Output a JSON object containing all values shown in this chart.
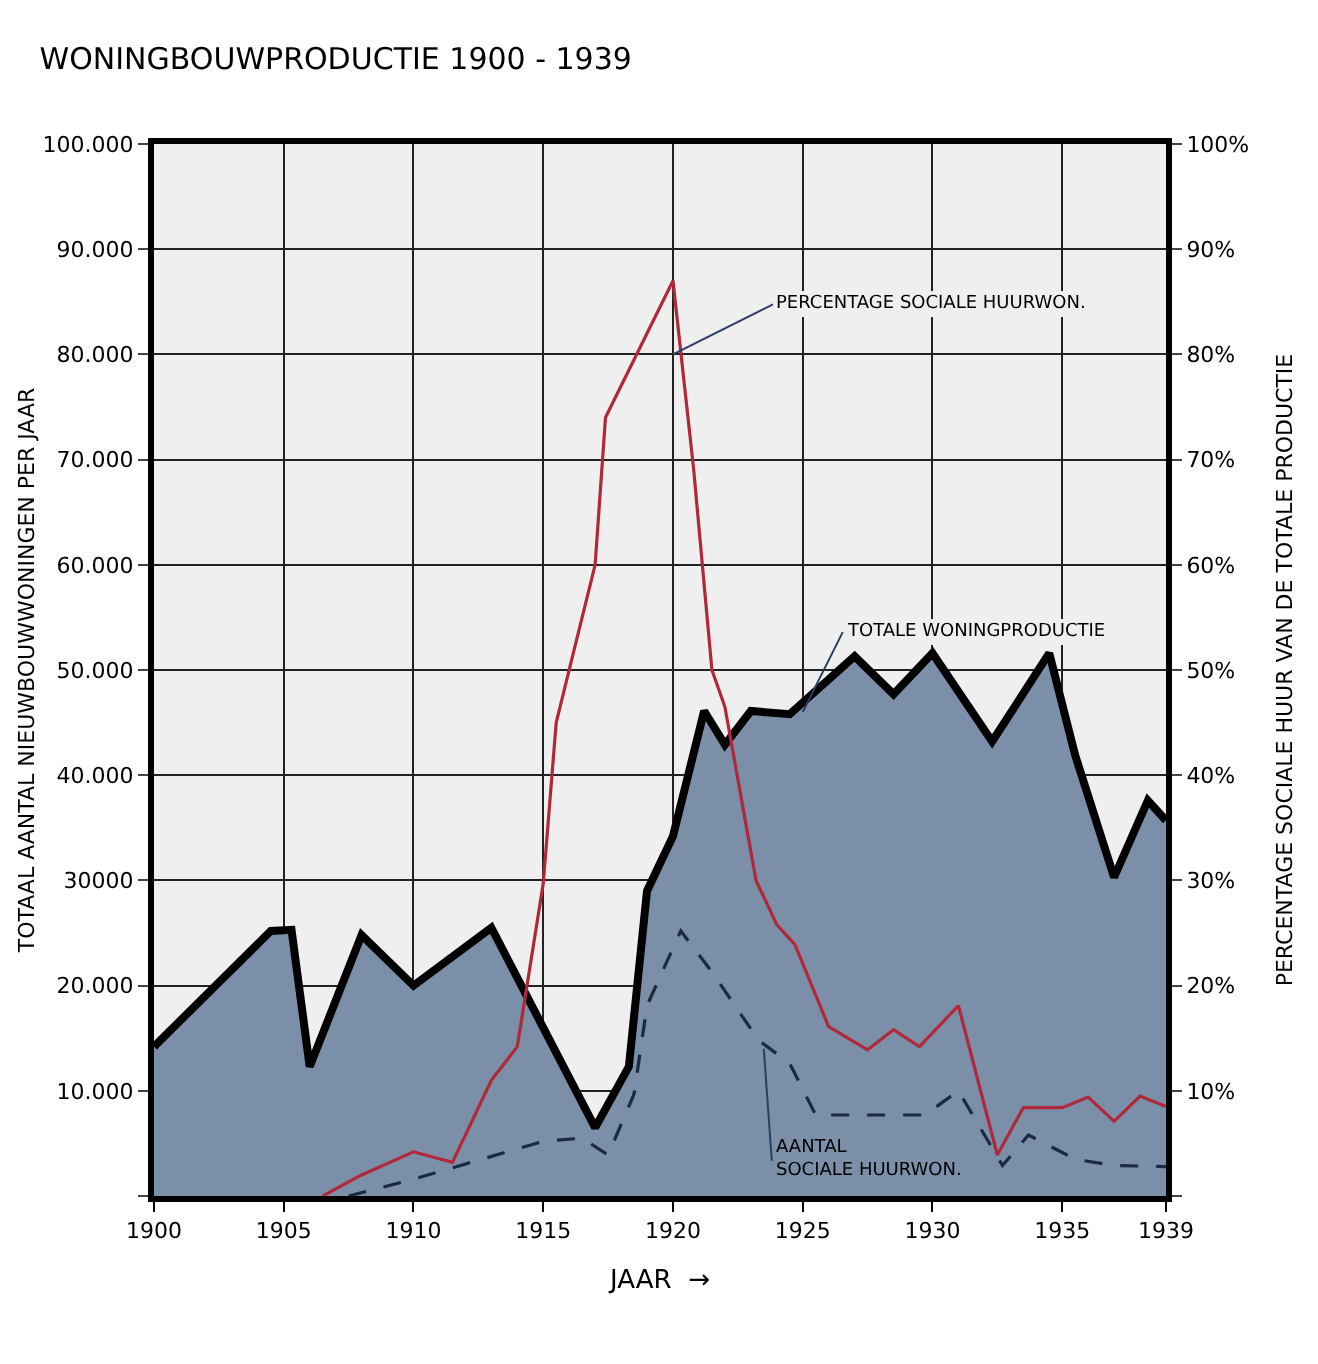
{
  "chart_data": {
    "type": "area",
    "title": "WONINGBOUWPRODUCTIE 1900 - 1939",
    "xlabel": "JAAR  →",
    "ylabel": "TOTAAL AANTAL NIEUWBOUWWONINGEN PER JAAR",
    "y2label": "PERCENTAGE SOCIALE HUUR VAN DE TOTALE PRODUCTIE",
    "series": [
      {
        "color": "#7b8fa8",
        "x": [
          1900,
          1904.5,
          1905.3,
          1906,
          1908,
          1910,
          1913,
          1917,
          1918.3,
          1919,
          1920,
          1921.2,
          1922,
          1923,
          1924.5,
          1927,
          1928.5,
          1930,
          1932.3,
          1934.5,
          1935.5,
          1937,
          1938.3,
          1939
        ],
        "values": [
          14200,
          25200,
          25300,
          12300,
          24800,
          20000,
          25500,
          6500,
          12300,
          29000,
          34200,
          46100,
          42900,
          46100,
          45800,
          51300,
          47700,
          51600,
          43200,
          51600,
          41900,
          30300,
          37600,
          35700
        ]
      },
      {
        "type": "line",
        "color": "#1a2a40",
        "line_style": "dashed",
        "x": [
          1907.5,
          1910,
          1915,
          1916.5,
          1917.5,
          1918.5,
          1919,
          1920.3,
          1921.5,
          1923.3,
          1924.5,
          1925.5,
          1929.7,
          1931,
          1932.7,
          1933.7,
          1935.5,
          1937,
          1939
        ],
        "values": [
          0,
          1600,
          5200,
          5500,
          3900,
          9700,
          18100,
          25200,
          21300,
          14800,
          12600,
          7700,
          7700,
          10000,
          2900,
          5800,
          3500,
          2900,
          2800
        ]
      },
      {
        "type": "line",
        "color": "#b0283a",
        "axis": "y2",
        "x": [
          1906.5,
          1908,
          1910,
          1911.5,
          1913,
          1914,
          1915,
          1915.5,
          1916.2,
          1917,
          1917.4,
          1920,
          1920.8,
          1921.5,
          1922,
          1923.2,
          1924,
          1924.7,
          1926,
          1927.5,
          1928.5,
          1929.5,
          1931,
          1932.5,
          1933.5,
          1935,
          1936,
          1937,
          1938,
          1939
        ],
        "values": [
          0,
          2,
          4.2,
          3.2,
          11,
          14.2,
          29.7,
          45,
          52,
          60,
          74,
          87,
          69,
          50,
          46.5,
          30,
          25.8,
          23.9,
          16.1,
          13.9,
          15.8,
          14.2,
          18.1,
          3.9,
          8.4,
          8.4,
          9.4,
          7.1,
          9.5,
          8.5
        ]
      }
    ],
    "annotations": [
      {
        "text": "PERCENTAGE SOCIALE HUURWON.",
        "x": 1920,
        "y": 80000
      },
      {
        "text": "TOTALE WONINGPRODUCTIE",
        "x": 1925,
        "y": 46000
      },
      {
        "text": "AANTAL SOCIALE HUURWON.",
        "x": 1923.5,
        "y": 14000
      }
    ],
    "xlim": [
      1900,
      1939
    ],
    "xticks": [
      1900,
      1905,
      1910,
      1915,
      1920,
      1925,
      1930,
      1935,
      1939
    ],
    "ylim": [
      0,
      100000
    ],
    "yticks": [
      {
        "value": 0,
        "label": null
      },
      {
        "value": 10000,
        "label": "10.000"
      },
      {
        "value": 20000,
        "label": "20.000"
      },
      {
        "value": 30000,
        "label": "30000"
      },
      {
        "value": 40000,
        "label": "40.000"
      },
      {
        "value": 50000,
        "label": "50.000"
      },
      {
        "value": 60000,
        "label": "60.000"
      },
      {
        "value": 70000,
        "label": "70.000"
      },
      {
        "value": 80000,
        "label": "80.000"
      },
      {
        "value": 90000,
        "label": "90.000"
      },
      {
        "value": 100000,
        "label": "100.000"
      }
    ],
    "y2lim": [
      0,
      100
    ],
    "y2ticks": [
      {
        "value": 0,
        "label": null
      },
      {
        "value": 10,
        "label": "10%"
      },
      {
        "value": 20,
        "label": "20%"
      },
      {
        "value": 30,
        "label": "30%"
      },
      {
        "value": 40,
        "label": "40%"
      },
      {
        "value": 50,
        "label": "50%"
      },
      {
        "value": 60,
        "label": "60%"
      },
      {
        "value": 70,
        "label": "70%"
      },
      {
        "value": 80,
        "label": "80%"
      },
      {
        "value": 90,
        "label": "90%"
      },
      {
        "value": 100,
        "label": "100%"
      }
    ],
    "grid": true
  }
}
